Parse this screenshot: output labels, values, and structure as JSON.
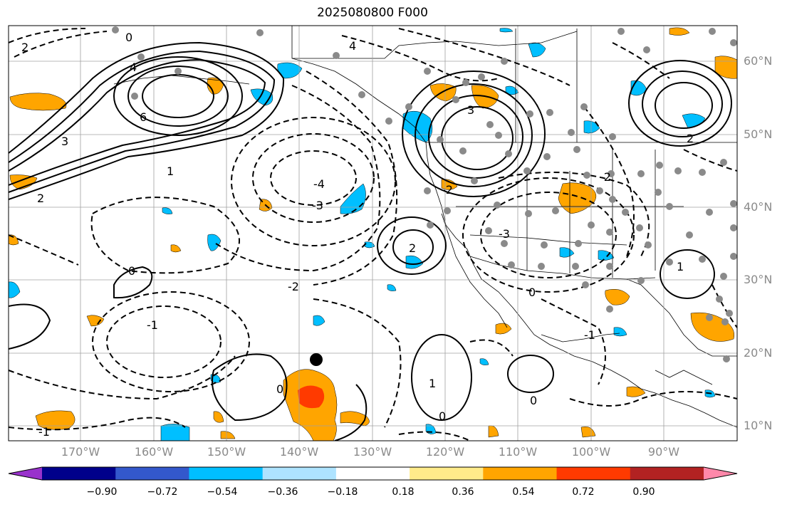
{
  "title": "2025080800 F000",
  "lat_labels": [
    "60°N",
    "50°N",
    "40°N",
    "30°N",
    "20°N",
    "10°N"
  ],
  "lon_labels": [
    "170°W",
    "160°W",
    "150°W",
    "140°W",
    "130°W",
    "120°W",
    "110°W",
    "100°W",
    "90°W"
  ],
  "colorbar": {
    "colors": [
      "#9932cc",
      "#00008b",
      "#3358cc",
      "#00bfff",
      "#aee3ff",
      "#ffffff",
      "#ffeb8a",
      "#ffa500",
      "#ff3a00",
      "#b22222",
      "#ff88aa"
    ],
    "tick_labels": [
      "−0.90",
      "−0.72",
      "−0.54",
      "−0.36",
      "−0.18",
      "0.18",
      "0.36",
      "0.54",
      "0.72",
      "0.90"
    ]
  },
  "contour_labels": [
    "2",
    "0",
    "4",
    "6",
    "3",
    "2",
    "1",
    "-4",
    "-3",
    "-2",
    "-1",
    "0",
    "4",
    "3",
    "2",
    "1",
    "0",
    "-2",
    "0",
    "-1",
    "0",
    "-3",
    "-2",
    "2",
    "1",
    "0",
    "-1"
  ],
  "marker": "storm-center-dot"
}
